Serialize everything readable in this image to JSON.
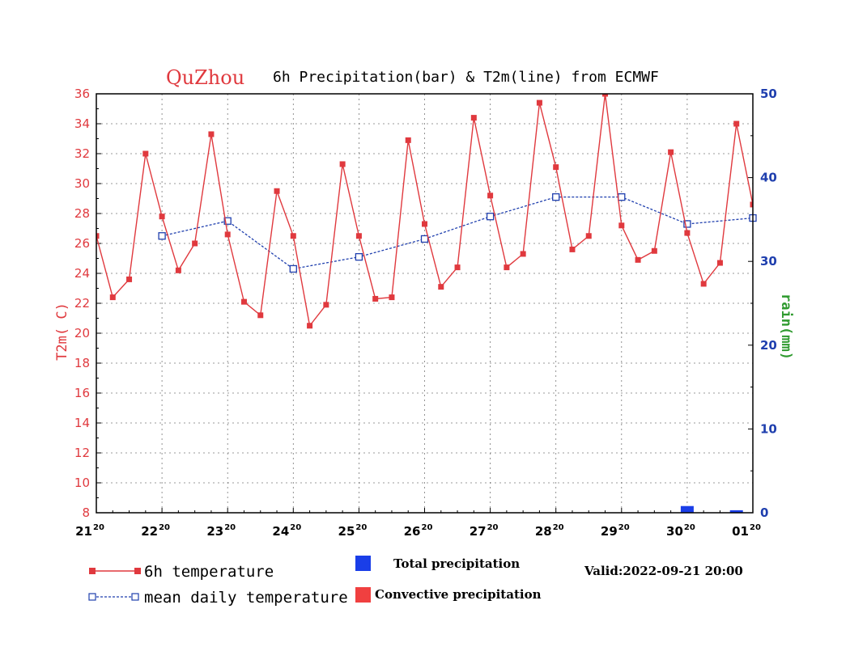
{
  "chart_data": {
    "type": "line",
    "title_city": "QuZhou",
    "title": "6h Precipitation(bar) & T2m(line) from ECMWF",
    "ylabel_left": "T2m( C)",
    "ylabel_right": "rain(mm)",
    "ylim_left": [
      8,
      36
    ],
    "ylim_right": [
      0,
      50
    ],
    "yticks_left": [
      8,
      10,
      12,
      14,
      16,
      18,
      20,
      22,
      24,
      26,
      28,
      30,
      32,
      34,
      36
    ],
    "yticks_right": [
      0,
      10,
      20,
      30,
      40,
      50
    ],
    "xticks": [
      {
        "day": "21",
        "hour": "20"
      },
      {
        "day": "22",
        "hour": "20"
      },
      {
        "day": "23",
        "hour": "20"
      },
      {
        "day": "24",
        "hour": "20"
      },
      {
        "day": "25",
        "hour": "20"
      },
      {
        "day": "26",
        "hour": "20"
      },
      {
        "day": "27",
        "hour": "20"
      },
      {
        "day": "28",
        "hour": "20"
      },
      {
        "day": "29",
        "hour": "20"
      },
      {
        "day": "30",
        "hour": "20"
      },
      {
        "day": "01",
        "hour": "20"
      }
    ],
    "series": [
      {
        "name": "6h temperature",
        "color": "#e0393e",
        "step_days": 0.25,
        "values": [
          26.5,
          22.4,
          23.6,
          32.0,
          27.8,
          24.2,
          26.0,
          33.3,
          26.6,
          22.1,
          21.2,
          29.5,
          26.5,
          20.5,
          21.9,
          31.3,
          26.5,
          22.3,
          22.4,
          32.9,
          27.3,
          23.1,
          24.4,
          34.4,
          29.2,
          24.4,
          25.3,
          35.4,
          31.1,
          25.6,
          26.5,
          36.2,
          27.2,
          24.9,
          25.5,
          32.1,
          26.7,
          23.3,
          24.7,
          34.0,
          28.6
        ]
      },
      {
        "name": "mean daily temperature",
        "color": "#1f3fae",
        "day_offsets": [
          1,
          2,
          3,
          4,
          5,
          6,
          7,
          8,
          9,
          10
        ],
        "values": [
          26.5,
          27.5,
          24.3,
          25.1,
          26.3,
          27.8,
          29.1,
          29.1,
          27.3,
          27.7
        ]
      },
      {
        "name": "Total precipitation",
        "type": "bar",
        "color": "#1a3ee8",
        "day_offsets": [
          9,
          9.75
        ],
        "values": [
          0.8,
          0.3
        ]
      },
      {
        "name": "Convective precipitation",
        "type": "bar",
        "color": "#f04040",
        "day_offsets": [],
        "values": []
      }
    ],
    "valid": "Valid:2022-09-21 20:00"
  }
}
